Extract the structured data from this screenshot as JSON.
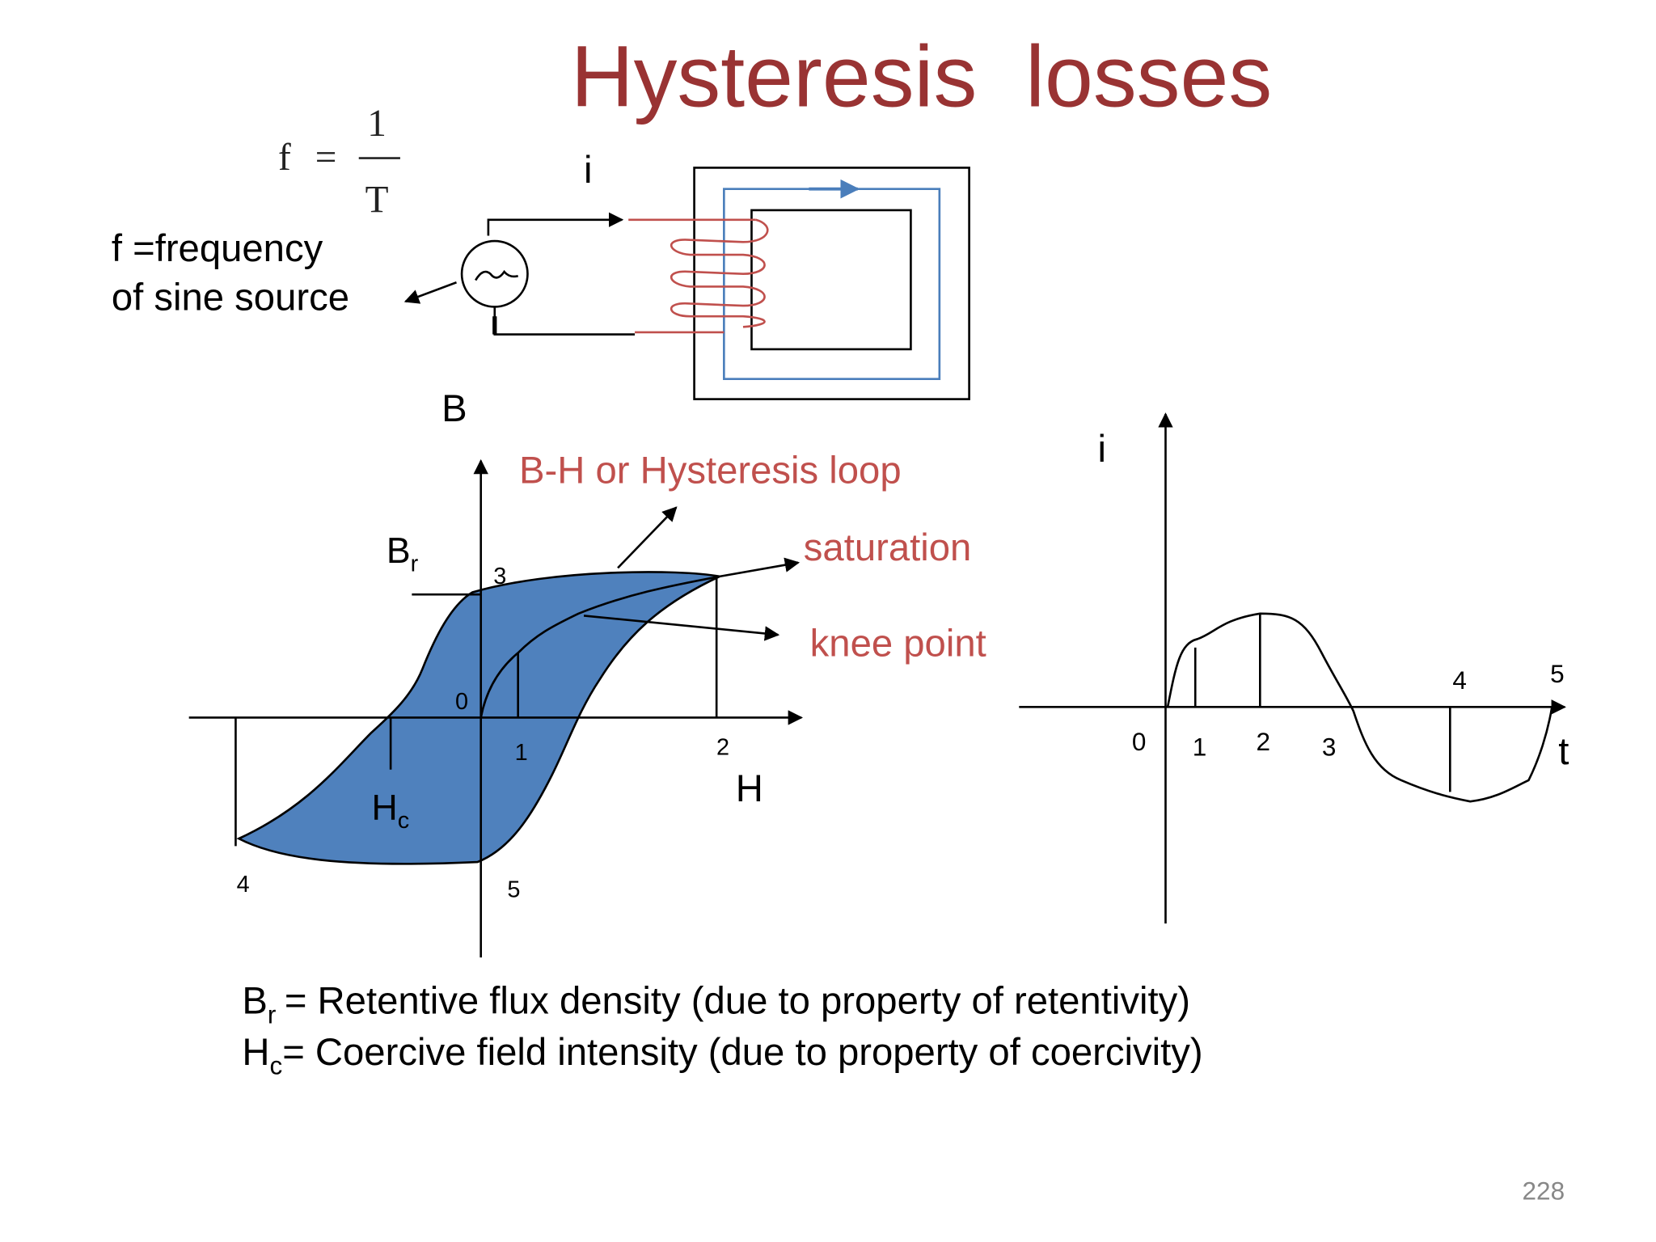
{
  "title": "Hysteresis  losses",
  "formula": {
    "lhs": "f",
    "eq": "=",
    "numerator": "1",
    "denominator": "T"
  },
  "circuit": {
    "current_label": "i",
    "source_note": [
      "f =frequency",
      "of sine source"
    ]
  },
  "bh_loop": {
    "y_axis": "B",
    "x_axis": "H",
    "caption": "B-H or Hysteresis loop",
    "saturation": "saturation",
    "knee_point": "knee point",
    "br": {
      "symbol": "B",
      "subscript": "r"
    },
    "hc": {
      "symbol": "H",
      "subscript": "c"
    },
    "points": [
      "0",
      "1",
      "2",
      "3",
      "4",
      "5"
    ]
  },
  "current_wave": {
    "y_axis": "i",
    "x_axis": "t",
    "points": [
      "0",
      "1",
      "2",
      "3",
      "4",
      "5"
    ]
  },
  "definitions": [
    {
      "symbol": "B",
      "subscript": "r",
      "text": "= Retentive flux density (due to property of retentivity)"
    },
    {
      "symbol": "H",
      "subscript": "c",
      "text": "= Coercive field intensity (due to property of coercivity)"
    }
  ],
  "page_number": "228"
}
